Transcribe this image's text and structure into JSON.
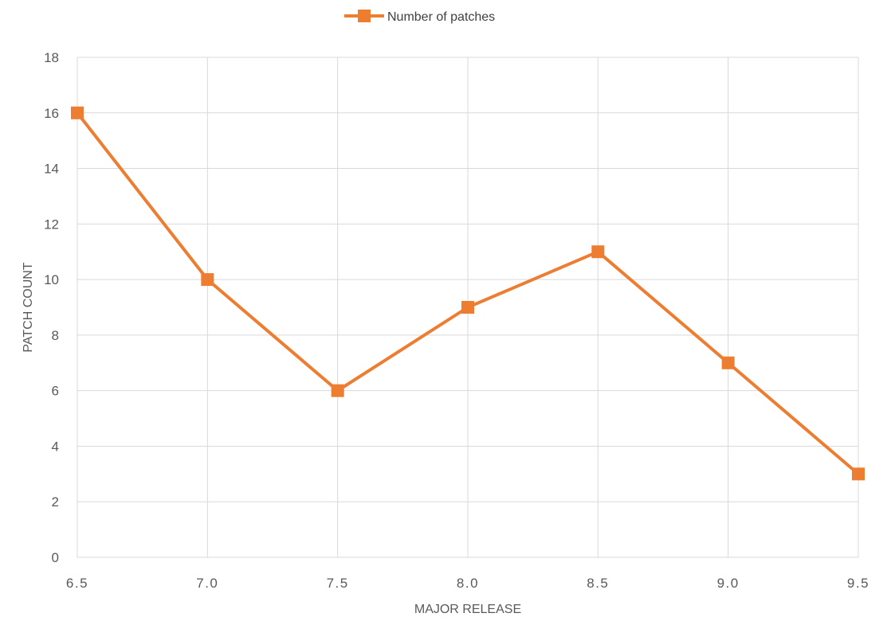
{
  "chart_data": {
    "type": "line",
    "title": "",
    "xlabel": "MAJOR RELEASE",
    "ylabel": "PATCH COUNT",
    "x": [
      "6.5",
      "7.0",
      "7.5",
      "8.0",
      "8.5",
      "9.0",
      "9.5"
    ],
    "series": [
      {
        "name": "Number of patches",
        "values": [
          16,
          10,
          6,
          9,
          11,
          7,
          3
        ],
        "color": "#ED7D31",
        "marker": "square"
      }
    ],
    "ylim": [
      0,
      18
    ],
    "y_ticks": [
      "0",
      "2",
      "4",
      "6",
      "8",
      "10",
      "12",
      "14",
      "16",
      "18"
    ],
    "grid": true,
    "legend": "top-center",
    "colors": {
      "grid": "#D9D9D9",
      "text": "#595959"
    }
  }
}
